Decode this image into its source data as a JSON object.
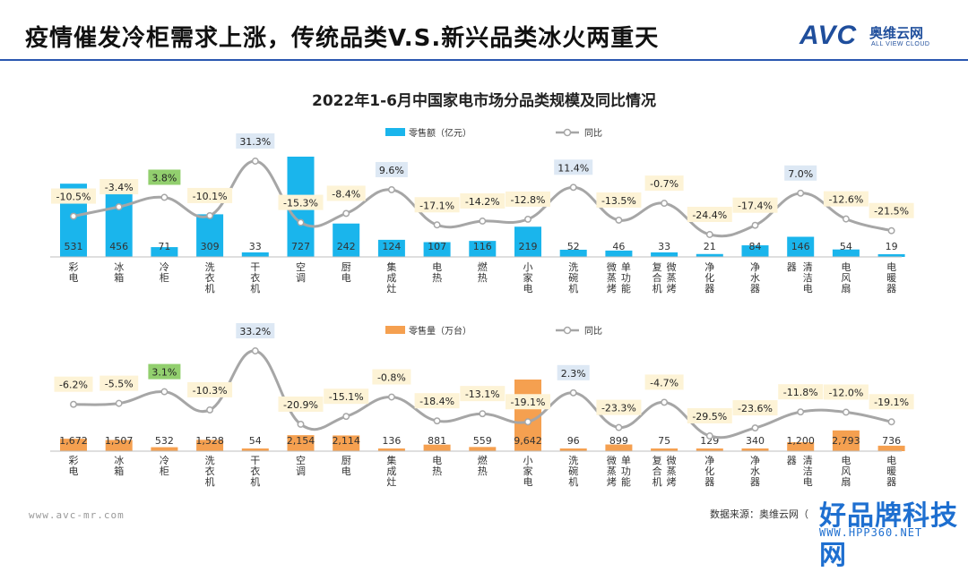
{
  "slide_title": "疫情催发冷柜需求上涨，传统品类V.S.新兴品类冰火两重天",
  "logo": {
    "avc": "AVC",
    "cn": "奥维云网",
    "en": "ALL VIEW CLOUD"
  },
  "footer": {
    "url": "www.avc-mr.com",
    "source": "数据来源：奥维云网（"
  },
  "watermark": {
    "main": "好品牌科技网",
    "url": "WWW.HPP360.NET"
  },
  "colors": {
    "accent": "#2a57b0",
    "sales_bar": "#1ab5ec",
    "volume_bar": "#f5a050",
    "line": "#a6a6a6",
    "label_yellow_bg": "#fdf3d6",
    "label_blue_bg": "#dde8f4",
    "label_green_bg": "#92cf6e"
  },
  "chart_data": {
    "title": "2022年1-6月中国家电市场分品类规模及同比情况",
    "categories": [
      "彩电",
      "冰箱",
      "冷柜",
      "洗衣机",
      "干衣机",
      "空调",
      "厨电",
      "集成灶",
      "电热",
      "燃热",
      "小家电",
      "洗碗机",
      "微蒸烤单功能",
      "复合机微蒸烤",
      "净化器",
      "净水器",
      "清洁电器",
      "电风扇",
      "电暖器"
    ],
    "category_lines": [
      [
        "彩",
        "电"
      ],
      [
        "冰",
        "箱"
      ],
      [
        "冷",
        "柜"
      ],
      [
        "洗",
        "衣",
        "机"
      ],
      [
        "干",
        "衣",
        "机"
      ],
      [
        "空",
        "调"
      ],
      [
        "厨",
        "电"
      ],
      [
        "集",
        "成",
        "灶"
      ],
      [
        "电",
        "热"
      ],
      [
        "燃",
        "热"
      ],
      [
        "小",
        "家",
        "电"
      ],
      [
        "洗",
        "碗",
        "机"
      ],
      [
        "微蒸烤",
        "单功能"
      ],
      [
        "复合机",
        "微蒸烤"
      ],
      [
        "净",
        "化",
        "器"
      ],
      [
        "净",
        "水",
        "器"
      ],
      [
        "器",
        "清洁电"
      ],
      [
        "电",
        "风",
        "扇"
      ],
      [
        "电",
        "暖",
        "器"
      ]
    ],
    "charts": [
      {
        "type": "bar+line",
        "bar_series": {
          "name": "零售额（亿元）",
          "values": [
            531,
            456,
            71,
            309,
            33,
            727,
            242,
            124,
            107,
            116,
            219,
            52,
            46,
            33,
            21,
            84,
            146,
            54,
            19
          ],
          "labels": [
            "531",
            "456",
            "71",
            "309",
            "33",
            "727",
            "242",
            "124",
            "107",
            "116",
            "219",
            "52",
            "46",
            "33",
            "21",
            "84",
            "146",
            "54",
            "19"
          ]
        },
        "line_series": {
          "name": "同比",
          "unit": "%",
          "values": [
            -10.5,
            -3.4,
            3.8,
            -10.1,
            31.3,
            -15.3,
            -8.4,
            9.6,
            -17.1,
            -14.2,
            -12.8,
            11.4,
            -13.5,
            -0.7,
            -24.4,
            -17.4,
            7.0,
            -12.6,
            -21.5
          ],
          "labels": [
            "-10.5%",
            "-3.4%",
            "3.8%",
            "-10.1%",
            "31.3%",
            "-15.3%",
            "-8.4%",
            "9.6%",
            "-17.1%",
            "-14.2%",
            "-12.8%",
            "11.4%",
            "-13.5%",
            "-0.7%",
            "-24.4%",
            "-17.4%",
            "7.0%",
            "-12.6%",
            "-21.5%"
          ]
        }
      },
      {
        "type": "bar+line",
        "bar_series": {
          "name": "零售量（万台）",
          "values": [
            1672,
            1507,
            532,
            1528,
            54,
            2154,
            2114,
            136,
            881,
            559,
            9642,
            96,
            899,
            75,
            129,
            340,
            1200,
            2793,
            736
          ],
          "labels": [
            "1,672",
            "1,507",
            "532",
            "1,528",
            "54",
            "2,154",
            "2,114",
            "136",
            "881",
            "559",
            "9,642",
            "96",
            "899",
            "75",
            "129",
            "340",
            "1,200",
            "2,793",
            "736"
          ]
        },
        "line_series": {
          "name": "同比",
          "unit": "%",
          "values": [
            -6.2,
            -5.5,
            3.1,
            -10.3,
            33.2,
            -20.9,
            -15.1,
            -0.8,
            -18.4,
            -13.1,
            -19.1,
            2.3,
            -23.3,
            -4.7,
            -29.5,
            -23.6,
            -11.8,
            -12.0,
            -19.1
          ],
          "labels": [
            "-6.2%",
            "-5.5%",
            "3.1%",
            "-10.3%",
            "33.2%",
            "-20.9%",
            "-15.1%",
            "-0.8%",
            "-18.4%",
            "-13.1%",
            "-19.1%",
            "2.3%",
            "-23.3%",
            "-4.7%",
            "-29.5%",
            "-23.6%",
            "-11.8%",
            "-12.0%",
            "-19.1%"
          ]
        }
      }
    ]
  }
}
